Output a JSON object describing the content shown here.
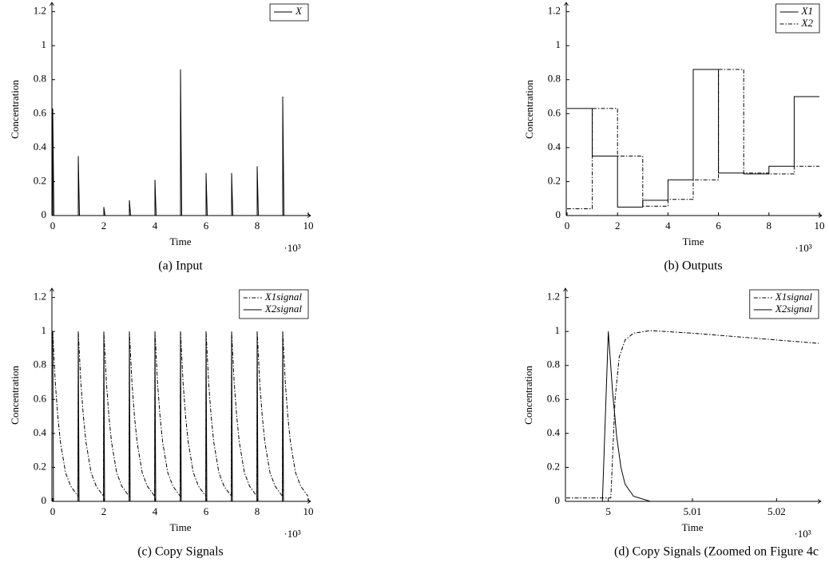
{
  "chart_data": [
    {
      "type": "stem",
      "caption": "(a) Input",
      "xlabel": "Time",
      "ylabel": "Concentration",
      "x_multiplier": "·10³",
      "xlim": [
        0,
        10
      ],
      "ylim": [
        0,
        1.25
      ],
      "xticks": [
        0,
        2,
        4,
        6,
        8,
        10
      ],
      "yticks": [
        0,
        0.2,
        0.4,
        0.6,
        0.8,
        1,
        1.2
      ],
      "legend": "upper right",
      "series": [
        {
          "name": "X",
          "color": "#000000",
          "dash": "solid",
          "x": [
            0,
            1,
            2,
            3,
            4,
            5,
            6,
            7,
            8,
            9
          ],
          "values": [
            0.63,
            0.35,
            0.05,
            0.09,
            0.21,
            0.86,
            0.25,
            0.25,
            0.29,
            0.7
          ]
        }
      ]
    },
    {
      "type": "step",
      "caption": "(b) Outputs",
      "xlabel": "Time",
      "ylabel": "Concentration",
      "x_multiplier": "·10³",
      "xlim": [
        0,
        10
      ],
      "ylim": [
        0,
        1.25
      ],
      "xticks": [
        0,
        2,
        4,
        6,
        8,
        10
      ],
      "yticks": [
        0,
        0.2,
        0.4,
        0.6,
        0.8,
        1,
        1.2
      ],
      "legend": "upper right",
      "series": [
        {
          "name": "X1",
          "color": "#000000",
          "dash": "solid",
          "x": [
            0,
            1,
            2,
            3,
            4,
            5,
            6,
            7,
            8,
            9
          ],
          "values": [
            0.63,
            0.35,
            0.05,
            0.09,
            0.21,
            0.86,
            0.25,
            0.245,
            0.29,
            0.7
          ]
        },
        {
          "name": "X2",
          "color": "#000000",
          "dash": "dashdot",
          "x": [
            0,
            1,
            2,
            3,
            4,
            5,
            6,
            7,
            8,
            9
          ],
          "values": [
            0.04,
            0.63,
            0.35,
            0.055,
            0.095,
            0.21,
            0.86,
            0.25,
            0.245,
            0.29
          ]
        }
      ]
    },
    {
      "type": "line",
      "caption": "(c) Copy Signals",
      "xlabel": "Time",
      "ylabel": "Concentration",
      "x_multiplier": "·10³",
      "xlim": [
        0,
        10
      ],
      "ylim": [
        0,
        1.25
      ],
      "xticks": [
        0,
        2,
        4,
        6,
        8,
        10
      ],
      "yticks": [
        0,
        0.2,
        0.4,
        0.6,
        0.8,
        1,
        1.2
      ],
      "legend": "upper right",
      "series": [
        {
          "name": "X1signal",
          "color": "#000000",
          "dash": "dashdot",
          "x": [
            0,
            0.1,
            0.2,
            0.3,
            0.5,
            0.7,
            0.99,
            1,
            1.1,
            1.2,
            1.3,
            1.5,
            1.7,
            1.99,
            2,
            2.1,
            2.2,
            2.3,
            2.5,
            2.7,
            2.99,
            3,
            3.1,
            3.2,
            3.3,
            3.5,
            3.7,
            3.99,
            4,
            4.1,
            4.2,
            4.3,
            4.5,
            4.7,
            4.99,
            5,
            5.1,
            5.2,
            5.3,
            5.5,
            5.7,
            5.99,
            6,
            6.1,
            6.2,
            6.3,
            6.5,
            6.7,
            6.99,
            7,
            7.1,
            7.2,
            7.3,
            7.5,
            7.7,
            7.99,
            8,
            8.1,
            8.2,
            8.3,
            8.5,
            8.7,
            8.99,
            9,
            9.1,
            9.2,
            9.3,
            9.5,
            9.7,
            9.99
          ],
          "values": [
            1,
            0.7,
            0.5,
            0.35,
            0.17,
            0.09,
            0.03,
            1,
            0.7,
            0.5,
            0.35,
            0.17,
            0.09,
            0.03,
            1,
            0.7,
            0.5,
            0.35,
            0.17,
            0.09,
            0.03,
            1,
            0.7,
            0.5,
            0.35,
            0.17,
            0.09,
            0.03,
            1,
            0.7,
            0.5,
            0.35,
            0.17,
            0.09,
            0.03,
            1,
            0.7,
            0.5,
            0.35,
            0.17,
            0.09,
            0.03,
            1,
            0.7,
            0.5,
            0.35,
            0.17,
            0.09,
            0.03,
            1,
            0.7,
            0.5,
            0.35,
            0.17,
            0.09,
            0.03,
            1,
            0.7,
            0.5,
            0.35,
            0.17,
            0.09,
            0.03,
            1,
            0.7,
            0.5,
            0.35,
            0.17,
            0.09,
            0.03
          ]
        },
        {
          "name": "X2signal",
          "color": "#000000",
          "dash": "solid",
          "x": [
            0,
            0.03,
            0.99,
            1,
            1.03,
            1.99,
            2,
            2.03,
            2.99,
            3,
            3.03,
            3.99,
            4,
            4.03,
            4.99,
            5,
            5.03,
            5.99,
            6,
            6.03,
            6.99,
            7,
            7.03,
            7.99,
            8,
            8.03,
            8.99,
            9,
            9.03,
            10
          ],
          "values": [
            1,
            0,
            0,
            1,
            0,
            0,
            1,
            0,
            0,
            1,
            0,
            0,
            1,
            0,
            0,
            1,
            0,
            0,
            1,
            0,
            0,
            1,
            0,
            0,
            1,
            0,
            0,
            1,
            0,
            0
          ]
        }
      ]
    },
    {
      "type": "line",
      "caption": "(d) Copy Signals (Zoomed on Figure 4c",
      "xlabel": "Time",
      "ylabel": "Concentration",
      "x_multiplier": "·10³",
      "xlim": [
        4.995,
        5.025
      ],
      "ylim": [
        0,
        1.25
      ],
      "xticks": [
        5,
        5.01,
        5.02
      ],
      "yticks": [
        0,
        0.2,
        0.4,
        0.6,
        0.8,
        1,
        1.2
      ],
      "legend": "upper right",
      "series": [
        {
          "name": "X1signal",
          "color": "#000000",
          "dash": "dashdot",
          "x": [
            4.995,
            5.0003,
            5.0008,
            5.0013,
            5.002,
            5.003,
            5.005,
            5.01,
            5.015,
            5.02,
            5.025
          ],
          "values": [
            0.02,
            0.02,
            0.6,
            0.85,
            0.95,
            0.99,
            1.005,
            0.99,
            0.97,
            0.95,
            0.93
          ]
        },
        {
          "name": "X2signal",
          "color": "#000000",
          "dash": "solid",
          "x": [
            4.995,
            4.9993,
            5,
            5.0005,
            5.001,
            5.0015,
            5.002,
            5.003,
            5.005,
            5.025
          ],
          "values": [
            0,
            0,
            1,
            0.65,
            0.38,
            0.2,
            0.1,
            0.03,
            0,
            0
          ]
        }
      ]
    }
  ]
}
